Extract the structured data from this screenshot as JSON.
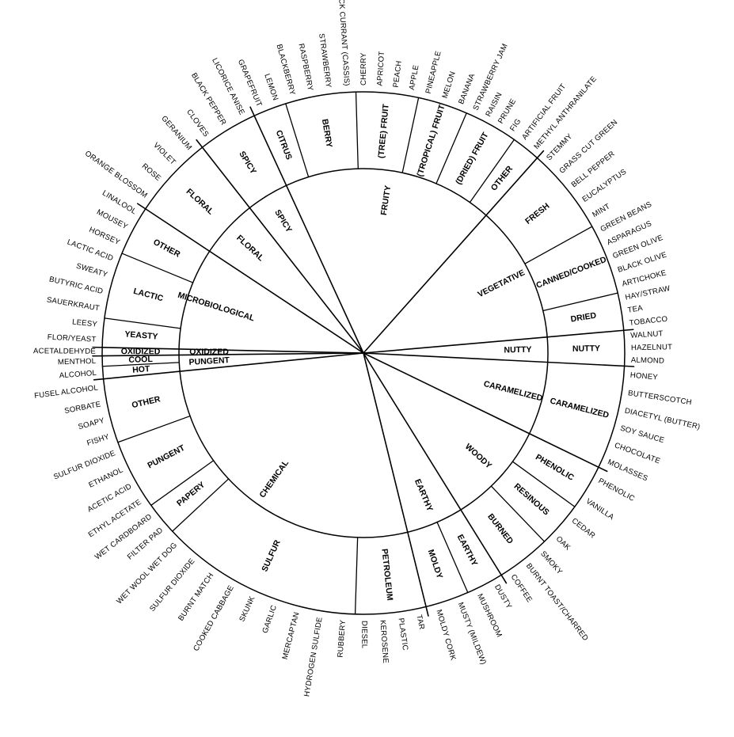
{
  "title": "",
  "wheel": {
    "tiers": [
      {
        "name": "Tier 1",
        "labels": [
          "FLORAL",
          "SPICY",
          "FRUITY",
          "VEGETATIVE",
          "NUTTY",
          "CARAMELIZED",
          "WOODY",
          "EARTHY",
          "CHEMICAL",
          "PUNGENT",
          "OXIDIZED",
          "MICROBIOLOGICAL"
        ]
      },
      {
        "name": "Tier 2",
        "labels": [
          "FLORAL",
          "SPICY",
          "CITRUS",
          "BERRY",
          "(TREE) FRUIT",
          "(TROPICAL) FRUIT",
          "(DRIED) FRUIT",
          "OTHER",
          "FRESH",
          "CANNED/COOKED",
          "DRIED",
          "NUTTY",
          "CARAMELIZED",
          "PHENOLIC",
          "RESINOUS",
          "BURNED",
          "EARTHY",
          "MOLDY",
          "PETROLEUM",
          "SULFUR",
          "PAPERY",
          "PUNGENT",
          "OTHER",
          "HOT",
          "COOL",
          "OXIDIZED",
          "YEASTY",
          "LACTIC",
          "OTHER"
        ]
      }
    ],
    "segments": [
      {
        "tier1": "FLORAL",
        "tier2": "FLORAL",
        "descriptors": [
          "ORANGE BLOSSOM",
          "ROSE",
          "VIOLET",
          "GERANIUM"
        ]
      },
      {
        "tier1": "SPICY",
        "tier2": "SPICY",
        "descriptors": [
          "CLOVES",
          "BLACK PEPPER",
          "LICORICE ANISE"
        ]
      },
      {
        "tier1": "FRUITY",
        "tier2": "CITRUS",
        "descriptors": [
          "GRAPEFRUIT",
          "LEMON"
        ]
      },
      {
        "tier1": "FRUITY",
        "tier2": "BERRY",
        "descriptors": [
          "BLACKBERRY",
          "RASPBERRY",
          "STRAWBERRY",
          "BLACK CURRANT (CASSIS)"
        ]
      },
      {
        "tier1": "FRUITY",
        "tier2": "(TREE) FRUIT",
        "descriptors": [
          "CHERRY",
          "APRICOT",
          "PEACH",
          "APPLE"
        ]
      },
      {
        "tier1": "FRUITY",
        "tier2": "(TROPICAL) FRUIT",
        "descriptors": [
          "PINEAPPLE",
          "MELON",
          "BANANA"
        ]
      },
      {
        "tier1": "FRUITY",
        "tier2": "(DRIED) FRUIT",
        "descriptors": [
          "STRAWBERRY JAM",
          "RAISIN",
          "PRUNE",
          "FIG"
        ]
      },
      {
        "tier1": "FRUITY",
        "tier2": "OTHER",
        "descriptors": [
          "ARTIFICIAL FRUIT",
          "METHYL ANTHRANILATE"
        ]
      },
      {
        "tier1": "VEGETATIVE",
        "tier2": "FRESH",
        "descriptors": [
          "STEMMY",
          "GRASS CUT GREEN",
          "BELL PEPPER",
          "EUCALYPTUS",
          "MINT"
        ]
      },
      {
        "tier1": "VEGETATIVE",
        "tier2": "CANNED/COOKED",
        "descriptors": [
          "GREEN BEANS",
          "ASPARAGUS",
          "GREEN OLIVE",
          "BLACK OLIVE",
          "ARTICHOKE"
        ]
      },
      {
        "tier1": "VEGETATIVE",
        "tier2": "DRIED",
        "descriptors": [
          "HAY/STRAW",
          "TEA",
          "TOBACCO"
        ]
      },
      {
        "tier1": "NUTTY",
        "tier2": "NUTTY",
        "descriptors": [
          "WALNUT",
          "HAZELNUT",
          "ALMOND"
        ]
      },
      {
        "tier1": "CARAMELIZED",
        "tier2": "CARAMELIZED",
        "descriptors": [
          "HONEY",
          "BUTTERSCOTCH",
          "DIACETYL (BUTTER)",
          "SOY SAUCE",
          "CHOCOLATE",
          "MOLASSES"
        ]
      },
      {
        "tier1": "WOODY",
        "tier2": "PHENOLIC",
        "descriptors": [
          "PHENOLIC",
          "VANILLA"
        ]
      },
      {
        "tier1": "WOODY",
        "tier2": "RESINOUS",
        "descriptors": [
          "CEDAR",
          "OAK"
        ]
      },
      {
        "tier1": "WOODY",
        "tier2": "BURNED",
        "descriptors": [
          "SMOKY",
          "BURNT TOAST/CHARRED",
          "COFFEE"
        ]
      },
      {
        "tier1": "EARTHY",
        "tier2": "EARTHY",
        "descriptors": [
          "DUSTY",
          "MUSHROOM"
        ]
      },
      {
        "tier1": "EARTHY",
        "tier2": "MOLDY",
        "descriptors": [
          "MUSTY (MILDEW)",
          "MOLDY CORK"
        ]
      },
      {
        "tier1": "CHEMICAL",
        "tier2": "PETROLEUM",
        "descriptors": [
          "TAR",
          "PLASTIC",
          "KEROSENE",
          "DIESEL"
        ]
      },
      {
        "tier1": "CHEMICAL",
        "tier2": "SULFUR",
        "descriptors": [
          "RUBBERY",
          "HYDROGEN SULFIDE",
          "MERCAPTAN",
          "GARLIC",
          "SKUNK",
          "COOKED CABBAGE",
          "BURNT MATCH",
          "SULFUR DIOXIDE",
          "WET WOOL  WET DOG"
        ]
      },
      {
        "tier1": "CHEMICAL",
        "tier2": "PAPERY",
        "descriptors": [
          "FILTER PAD",
          "WET CARDBOARD"
        ]
      },
      {
        "tier1": "CHEMICAL",
        "tier2": "PUNGENT",
        "descriptors": [
          "ETHYL ACETATE",
          "ACETIC ACID",
          "ETHANOL",
          "SULFUR DIOXIDE"
        ]
      },
      {
        "tier1": "CHEMICAL",
        "tier2": "OTHER",
        "descriptors": [
          "FISHY",
          "SOAPY",
          "SORBATE",
          "FUSEL ALCOHOL"
        ]
      },
      {
        "tier1": "PUNGENT",
        "tier2": "HOT",
        "descriptors": [
          "ALCOHOL"
        ]
      },
      {
        "tier1": "PUNGENT",
        "tier2": "COOL",
        "descriptors": [
          "MENTHOL"
        ]
      },
      {
        "tier1": "OXIDIZED",
        "tier2": "OXIDIZED",
        "descriptors": [
          "ACETALDEHYDE"
        ]
      },
      {
        "tier1": "MICROBIOLOGICAL",
        "tier2": "YEASTY",
        "descriptors": [
          "FLOR/YEAST",
          "LEESY"
        ]
      },
      {
        "tier1": "MICROBIOLOGICAL",
        "tier2": "LACTIC",
        "descriptors": [
          "SAUERKRAUT",
          "BUTYRIC ACID",
          "SWEATY",
          "LACTIC ACID"
        ]
      },
      {
        "tier1": "MICROBIOLOGICAL",
        "tier2": "OTHER",
        "descriptors": [
          "HORSEY",
          "MOUSEY",
          "LINALOOL"
        ]
      }
    ]
  }
}
